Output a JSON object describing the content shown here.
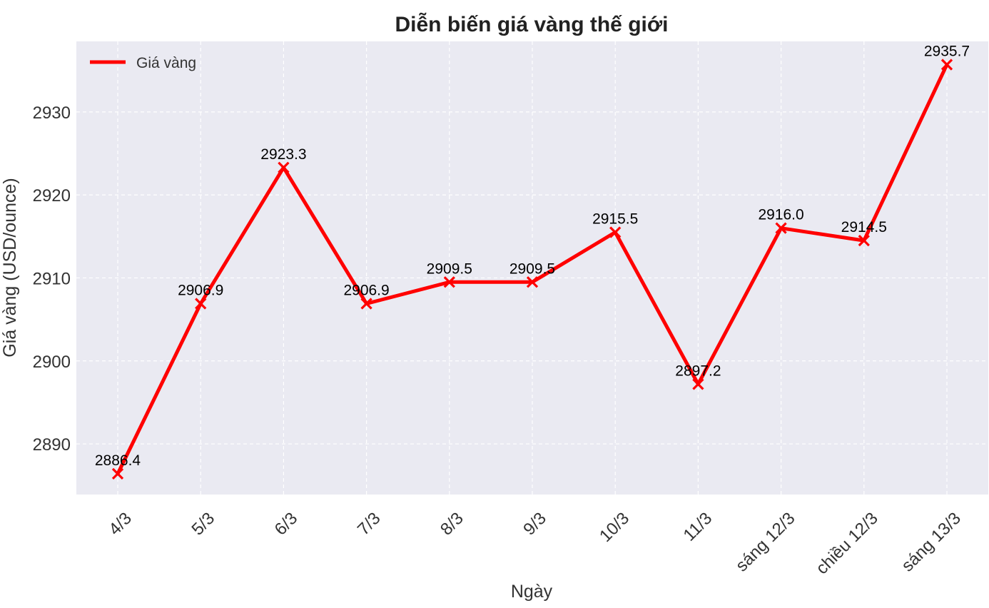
{
  "chart_data": {
    "type": "line",
    "title": "Diễn biến giá vàng thế giới",
    "xlabel": "Ngày",
    "ylabel": "Giá vàng (USD/ounce)",
    "categories": [
      "4/3",
      "5/3",
      "6/3",
      "7/3",
      "8/3",
      "9/3",
      "10/3",
      "11/3",
      "sáng 12/3",
      "chiều 12/3",
      "sáng 13/3"
    ],
    "series": [
      {
        "name": "Giá vàng",
        "values": [
          2886.4,
          2906.9,
          2923.3,
          2906.9,
          2909.5,
          2909.5,
          2915.5,
          2897.2,
          2916.0,
          2914.5,
          2935.7
        ],
        "data_labels": [
          "2886.4",
          "2906.9",
          "2923.3",
          "2906.9",
          "2909.5",
          "2909.5",
          "2915.5",
          "2897.2",
          "2916.0",
          "2914.5",
          "2935.7"
        ],
        "color": "#ff0000",
        "marker": "x"
      }
    ],
    "yticks": [
      2890,
      2900,
      2910,
      2920,
      2930
    ],
    "ytick_labels": [
      "2890",
      "2900",
      "2910",
      "2920",
      "2930"
    ],
    "ylim": [
      2883.9,
      2938.5
    ],
    "grid": true,
    "legend_position": "top-left",
    "background_color": "#eaeaf2",
    "grid_color": "#ffffff"
  }
}
